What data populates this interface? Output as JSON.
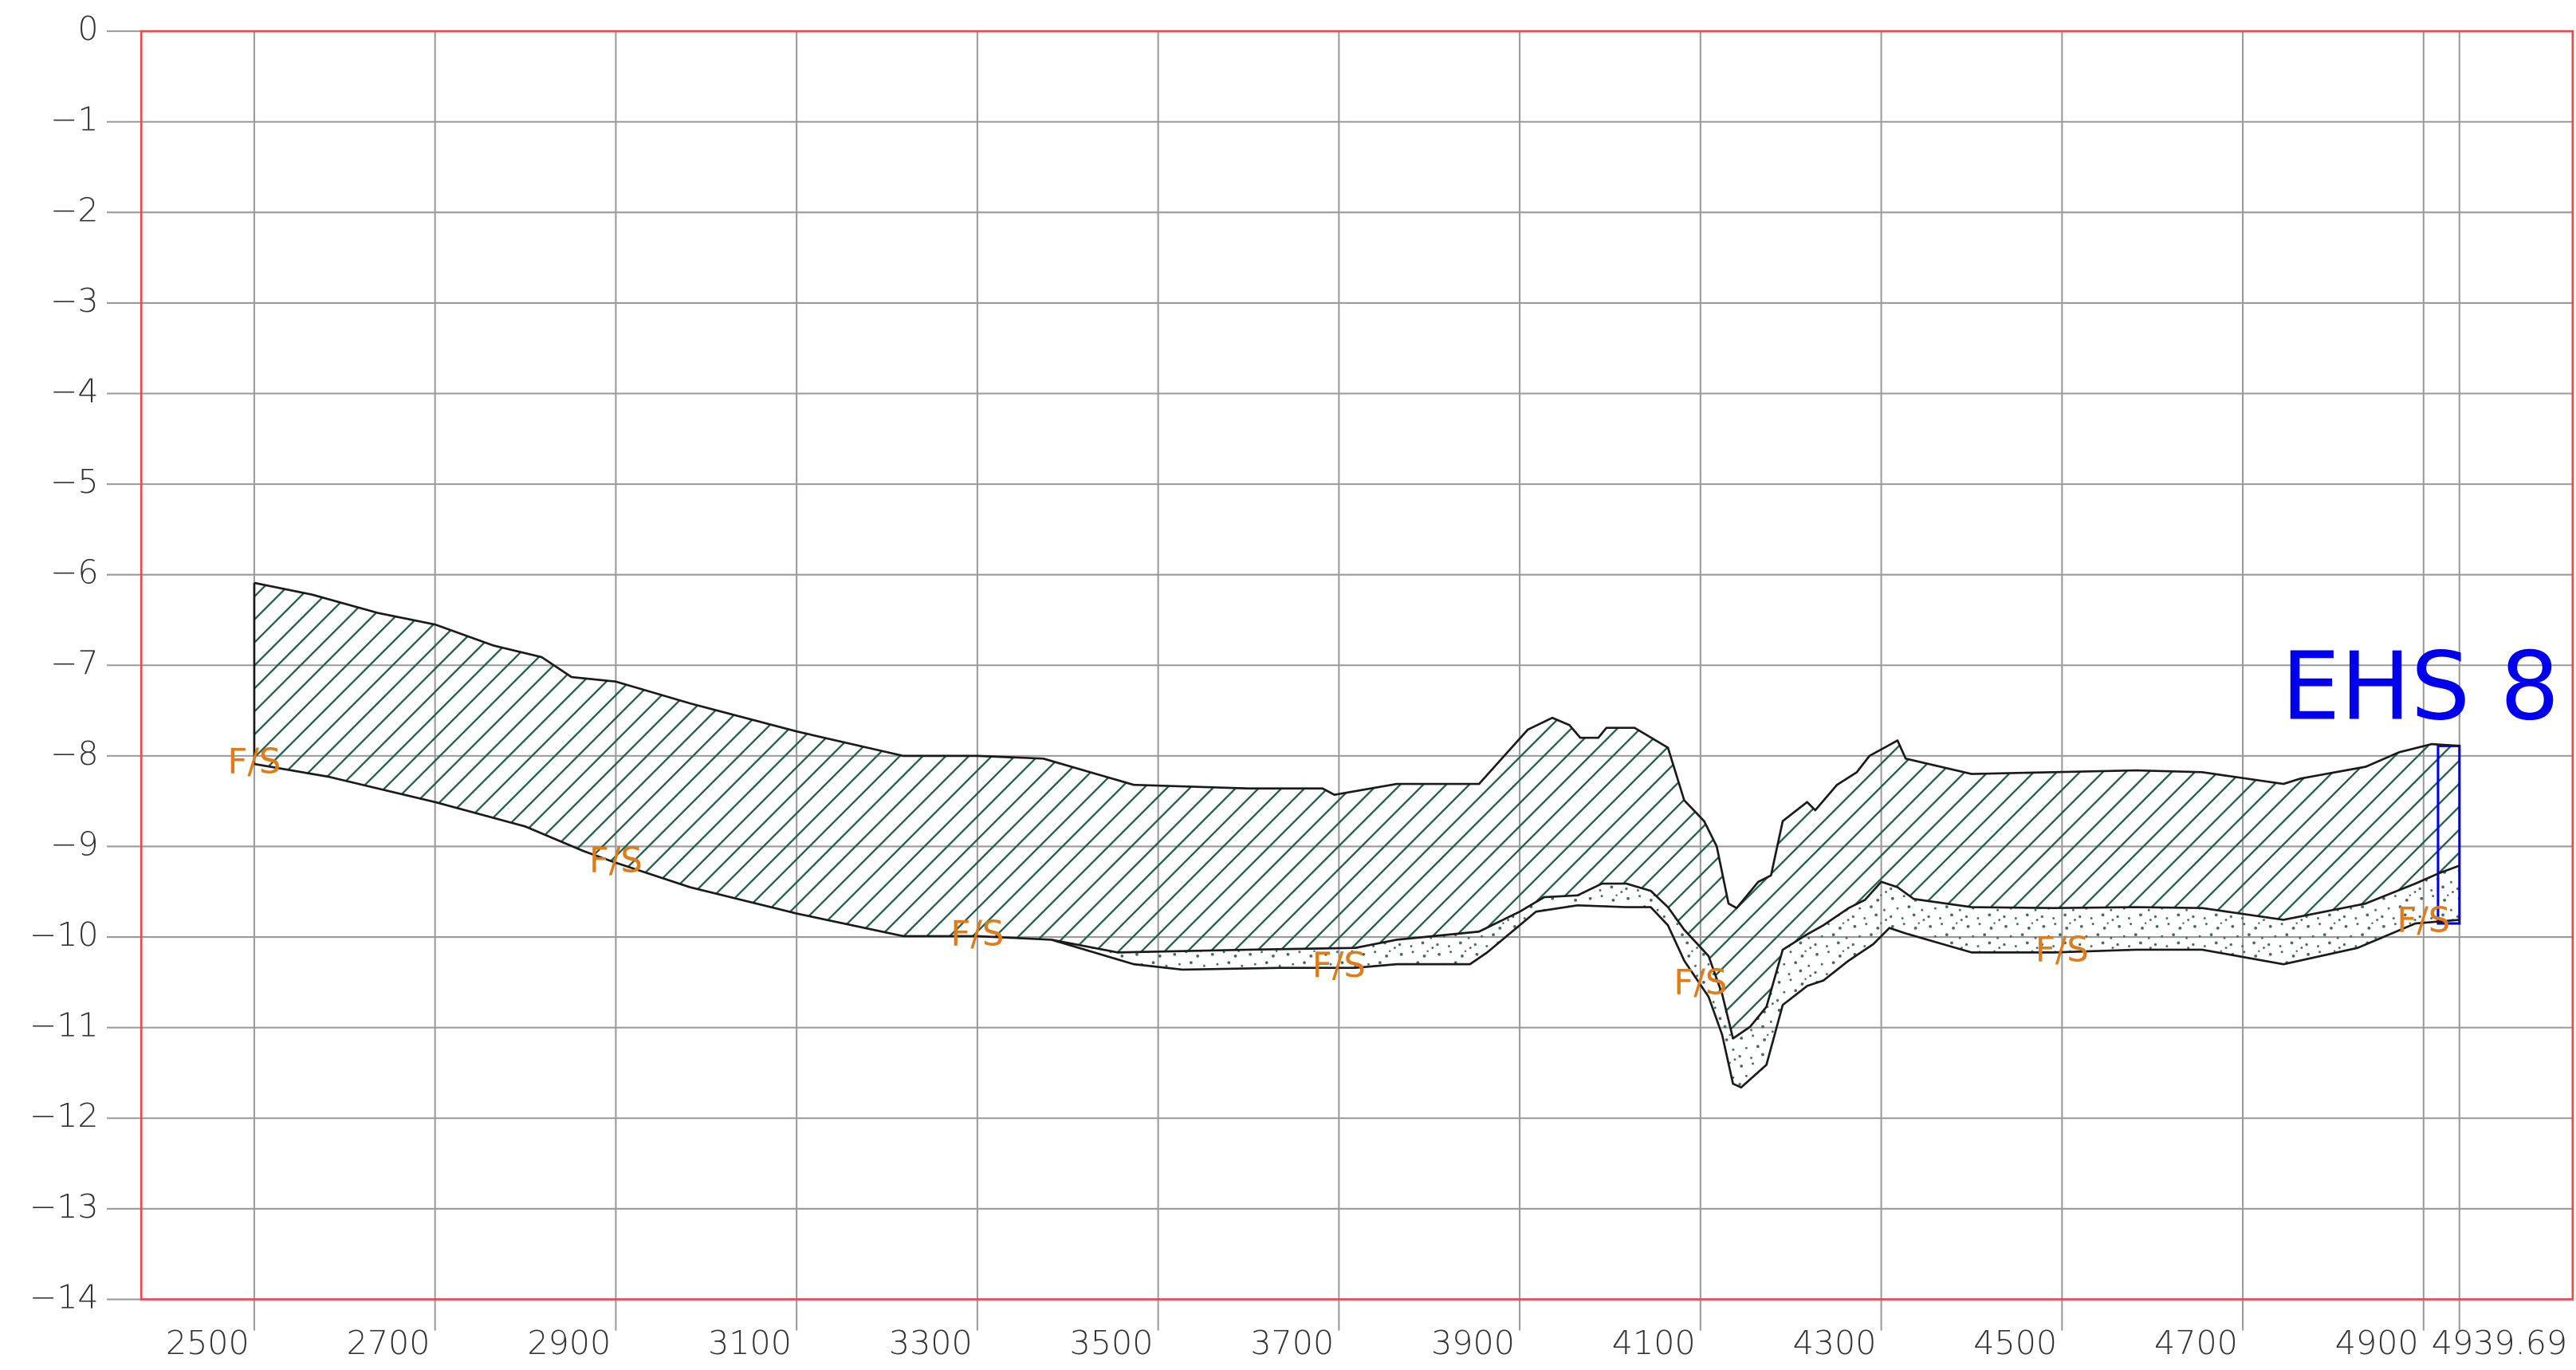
{
  "chart_data": {
    "type": "section",
    "xlim": [
      2375,
      5065
    ],
    "ylim": [
      -14,
      0
    ],
    "xticks": [
      2500,
      2700,
      2900,
      3100,
      3300,
      3500,
      3700,
      3900,
      4100,
      4300,
      4500,
      4700,
      4900,
      4939.69
    ],
    "yticks": [
      0,
      {
        "value": -1,
        "label": "−1"
      },
      {
        "value": -2,
        "label": "−2"
      },
      {
        "value": -3,
        "label": "−3"
      },
      {
        "value": -4,
        "label": "−4"
      },
      {
        "value": -5,
        "label": "−5"
      },
      {
        "value": -6,
        "label": "−6"
      },
      {
        "value": -7,
        "label": "−7"
      },
      {
        "value": -8,
        "label": "−8"
      },
      {
        "value": -9,
        "label": "−9"
      },
      {
        "value": -10,
        "label": "−10"
      },
      {
        "value": -11,
        "label": "−11"
      },
      {
        "value": -12,
        "label": "−12"
      },
      {
        "value": -13,
        "label": "−13"
      },
      {
        "value": -14,
        "label": "−14"
      }
    ],
    "grid": true,
    "frame_color": "#e8474c",
    "grid_color": "#9a9a9a",
    "line_color": "#1a1a1a",
    "hatch_color": "#1e5c4c",
    "dot_color": "#3d6a60",
    "surfaces": [
      {
        "x": [
          2500,
          2564,
          2636,
          2700,
          2764,
          2818,
          2851,
          2900,
          2982,
          3100,
          3218,
          3300,
          3373,
          3473,
          3600,
          3682,
          3695,
          3764,
          3855,
          3873,
          3909,
          3936,
          3955,
          3967,
          3987,
          3996,
          4027,
          4064,
          4082,
          4104,
          4118,
          4131,
          4140,
          4164,
          4178,
          4191,
          4218,
          4227,
          4251,
          4273,
          4287,
          4318,
          4327,
          4400,
          4491,
          4582,
          4655,
          4745,
          4764,
          4836,
          4873,
          4909,
          4940
        ],
        "values": [
          -6.09,
          -6.22,
          -6.42,
          -6.55,
          -6.78,
          -6.91,
          -7.13,
          -7.18,
          -7.42,
          -7.73,
          -8.0,
          -8.0,
          -8.03,
          -8.32,
          -8.36,
          -8.36,
          -8.43,
          -8.31,
          -8.31,
          -8.11,
          -7.71,
          -7.58,
          -7.66,
          -7.8,
          -7.8,
          -7.69,
          -7.69,
          -7.91,
          -8.49,
          -8.72,
          -9.0,
          -9.63,
          -9.68,
          -9.39,
          -9.32,
          -8.72,
          -8.51,
          -8.6,
          -8.32,
          -8.18,
          -8.0,
          -7.83,
          -8.03,
          -8.2,
          -8.18,
          -8.16,
          -8.18,
          -8.31,
          -8.25,
          -8.12,
          -7.96,
          -7.87,
          -7.89
        ]
      },
      {
        "x": [
          2500,
          2582,
          2700,
          2800,
          2864,
          2900,
          2982,
          3100,
          3218,
          3300,
          3382,
          3455,
          3600,
          3718,
          3764,
          3855,
          3900,
          3927,
          3964,
          3991,
          4018,
          4045,
          4064,
          4082,
          4109,
          4124,
          4136,
          4155,
          4173,
          4191,
          4218,
          4236,
          4264,
          4282,
          4300,
          4318,
          4336,
          4400,
          4491,
          4582,
          4655,
          4745,
          4836,
          4891,
          4916,
          4940
        ],
        "values": [
          -8.09,
          -8.23,
          -8.51,
          -8.78,
          -9.05,
          -9.18,
          -9.45,
          -9.74,
          -9.99,
          -9.99,
          -10.03,
          -10.17,
          -10.14,
          -10.12,
          -10.03,
          -9.94,
          -9.72,
          -9.56,
          -9.54,
          -9.41,
          -9.41,
          -9.49,
          -9.67,
          -9.92,
          -10.21,
          -10.63,
          -11.12,
          -10.99,
          -10.77,
          -10.14,
          -9.97,
          -9.87,
          -9.68,
          -9.59,
          -9.39,
          -9.45,
          -9.58,
          -9.67,
          -9.68,
          -9.67,
          -9.68,
          -9.81,
          -9.63,
          -9.41,
          -9.3,
          -9.21
        ]
      },
      {
        "x": [
          3382,
          3473,
          3527,
          3636,
          3718,
          3764,
          3845,
          3864,
          3918,
          3964,
          4018,
          4045,
          4064,
          4082,
          4109,
          4124,
          4136,
          4145,
          4173,
          4191,
          4218,
          4236,
          4264,
          4291,
          4309,
          4327,
          4400,
          4491,
          4582,
          4655,
          4745,
          4827,
          4891,
          4940
        ],
        "values": [
          -10.03,
          -10.3,
          -10.36,
          -10.34,
          -10.34,
          -10.3,
          -10.3,
          -10.17,
          -9.72,
          -9.65,
          -9.67,
          -9.67,
          -9.87,
          -10.26,
          -10.66,
          -11.08,
          -11.62,
          -11.66,
          -11.41,
          -10.75,
          -10.54,
          -10.48,
          -10.26,
          -10.08,
          -9.9,
          -9.96,
          -10.17,
          -10.17,
          -10.14,
          -10.14,
          -10.3,
          -10.12,
          -9.85,
          -9.81
        ]
      }
    ],
    "annotations": [
      "F/S",
      "F/S",
      "F/S",
      "F/S",
      "F/S",
      "F/S",
      "F/S"
    ],
    "box": {
      "label": "EHS 8",
      "color": "#0000ee",
      "xlim": [
        4916,
        4939.69
      ],
      "ylim": [
        -9.85,
        -7.89
      ]
    }
  }
}
